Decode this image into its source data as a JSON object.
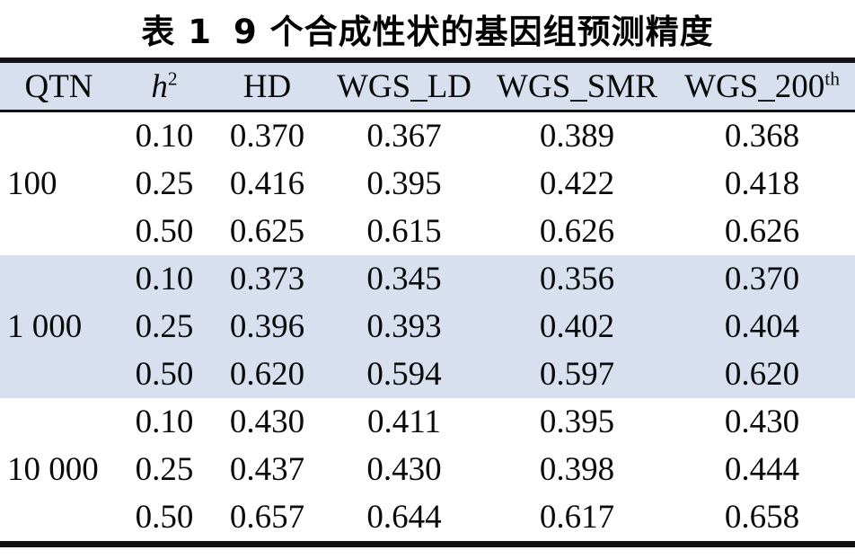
{
  "title": {
    "label": "表 1",
    "text": "9 个合成性状的基因组预测精度"
  },
  "colors": {
    "band": "#d8e0f0",
    "rule": "#131313",
    "background": "#ffffff",
    "text": "#0a0a0a"
  },
  "table": {
    "headers": [
      {
        "key": "qtn",
        "label": "QTN"
      },
      {
        "key": "h2",
        "label": "h",
        "sup": "2",
        "italic": true
      },
      {
        "key": "hd",
        "label": "HD"
      },
      {
        "key": "wgs-ld",
        "label": "WGS_LD"
      },
      {
        "key": "wgs-smr",
        "label": "WGS_SMR"
      },
      {
        "key": "wgs-200th",
        "label": "WGS_200",
        "sup": "th"
      }
    ],
    "groups": [
      {
        "qtn": "100",
        "shaded": false,
        "rows": [
          {
            "h2": "0.10",
            "values": [
              "0.370",
              "0.367",
              "0.389",
              "0.368"
            ]
          },
          {
            "h2": "0.25",
            "values": [
              "0.416",
              "0.395",
              "0.422",
              "0.418"
            ]
          },
          {
            "h2": "0.50",
            "values": [
              "0.625",
              "0.615",
              "0.626",
              "0.626"
            ]
          }
        ]
      },
      {
        "qtn": "1 000",
        "shaded": true,
        "rows": [
          {
            "h2": "0.10",
            "values": [
              "0.373",
              "0.345",
              "0.356",
              "0.370"
            ]
          },
          {
            "h2": "0.25",
            "values": [
              "0.396",
              "0.393",
              "0.402",
              "0.404"
            ]
          },
          {
            "h2": "0.50",
            "values": [
              "0.620",
              "0.594",
              "0.597",
              "0.620"
            ]
          }
        ]
      },
      {
        "qtn": "10 000",
        "shaded": false,
        "rows": [
          {
            "h2": "0.10",
            "values": [
              "0.430",
              "0.411",
              "0.395",
              "0.430"
            ]
          },
          {
            "h2": "0.25",
            "values": [
              "0.437",
              "0.430",
              "0.398",
              "0.444"
            ]
          },
          {
            "h2": "0.50",
            "values": [
              "0.657",
              "0.644",
              "0.617",
              "0.658"
            ]
          }
        ]
      }
    ]
  }
}
